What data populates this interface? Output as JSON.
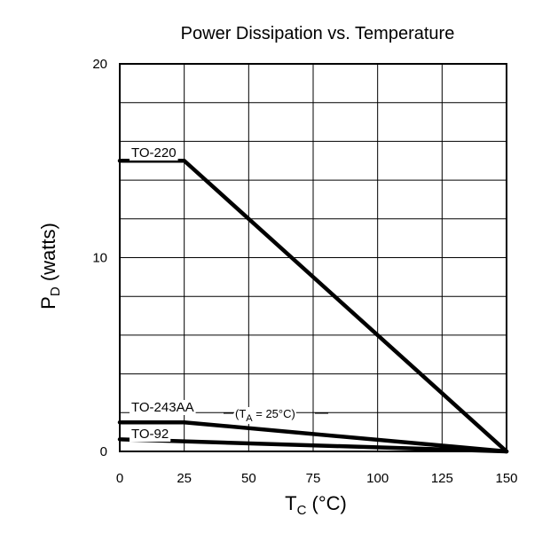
{
  "chart_data": {
    "type": "line",
    "title": "Power Dissipation vs. Temperature",
    "xlabel": {
      "main": "T",
      "sub": "C",
      "unit": "(°C)"
    },
    "ylabel": {
      "main": "P",
      "sub": "D",
      "unit": "(watts)"
    },
    "xlim": [
      0,
      150
    ],
    "ylim": [
      0,
      20
    ],
    "x_ticks": [
      0,
      25,
      50,
      75,
      100,
      125,
      150
    ],
    "x_tick_labels": [
      "0",
      "25",
      "50",
      "75",
      "100",
      "125",
      "150"
    ],
    "y_ticks": [
      0,
      10,
      20
    ],
    "y_tick_labels": [
      "0",
      "10",
      "20"
    ],
    "grid": {
      "x_step": 25,
      "y_step": 2
    },
    "series": [
      {
        "name": "TO-220",
        "x": [
          0,
          25,
          150
        ],
        "y": [
          15,
          15,
          0
        ]
      },
      {
        "name": "TO-243AA",
        "x": [
          0,
          25,
          150
        ],
        "y": [
          1.5,
          1.5,
          0
        ]
      },
      {
        "name": "TO-92",
        "x": [
          0,
          150
        ],
        "y": [
          0.625,
          0
        ]
      }
    ],
    "annotations": [
      {
        "series": "TO-243AA",
        "text_prefix": "(T",
        "text_sub": "A",
        "text_suffix": " = 25°C)"
      }
    ],
    "line_color": "#000000"
  }
}
